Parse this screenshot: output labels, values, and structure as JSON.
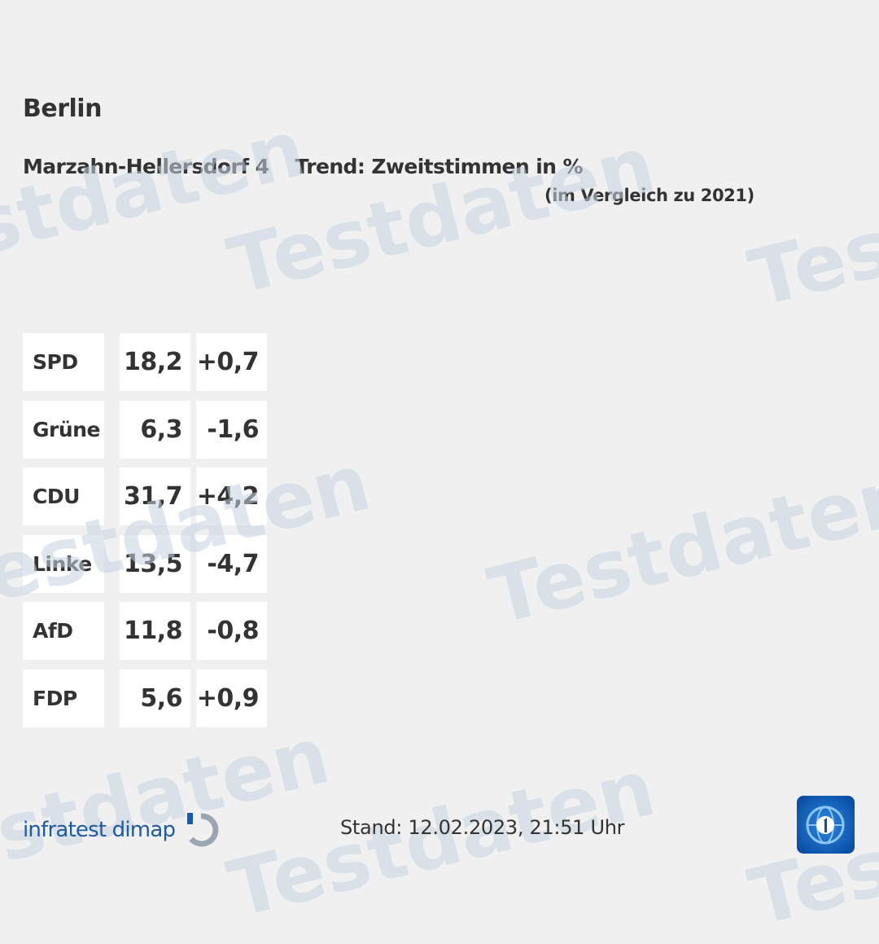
{
  "title": "Berlin",
  "district": "Marzahn-Hellersdorf 4",
  "trend_label": "Trend: Zweitstimmen in %",
  "comparison_note": "(im Vergleich zu 2021)",
  "watermark_text": "Testdaten",
  "footer": {
    "infratest_logo": "infratest dimap",
    "timestamp": "Stand: 12.02.2023, 21:51 Uhr",
    "broadcaster_logo": "tagesschau-logo-icon"
  },
  "colors": {
    "background": "#f0f0f0",
    "cell_background": "#ffffff",
    "text": "#333333",
    "infratest_blue": "#1d5ba8",
    "watermark": "#c8d3e0"
  },
  "chart_data": {
    "type": "table",
    "categories": [
      "SPD",
      "Grüne",
      "CDU",
      "Linke",
      "AfD",
      "FDP"
    ],
    "series": [
      {
        "name": "Zweitstimmen",
        "values": [
          "18,2",
          "6,3",
          "31,7",
          "13,5",
          "11,8",
          "5,6"
        ]
      },
      {
        "name": "Vergleich zu 2021",
        "values": [
          "+0,7",
          "-1,6",
          "+4,2",
          "-4,7",
          "-0,8",
          "+0,9"
        ]
      }
    ]
  }
}
